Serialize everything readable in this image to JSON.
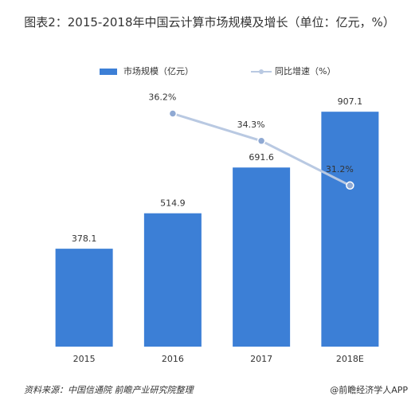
{
  "chart_data": {
    "type": "bar",
    "title": "图表2：2015-2018年中国云计算市场规模及增长（单位：亿元，%）",
    "categories": [
      "2015",
      "2016",
      "2017",
      "2018E"
    ],
    "series": [
      {
        "name": "市场规模（亿元）",
        "type": "bar",
        "color": "#3c7fd6",
        "values": [
          378.1,
          514.9,
          691.6,
          907.1
        ]
      },
      {
        "name": "同比增速（%）",
        "type": "line",
        "axis": "y2",
        "color": "#b9c9e2",
        "values": [
          null,
          36.2,
          34.3,
          31.2
        ],
        "value_labels": [
          null,
          "36.2%",
          "34.3%",
          "31.2%"
        ]
      }
    ],
    "ylim": [
      0,
      1000
    ],
    "y2lim": [
      20,
      38
    ],
    "legend": "top",
    "source": "资料来源：中国信通院 前瞻产业研究院整理",
    "credit": "@前瞻经济学人APP"
  }
}
